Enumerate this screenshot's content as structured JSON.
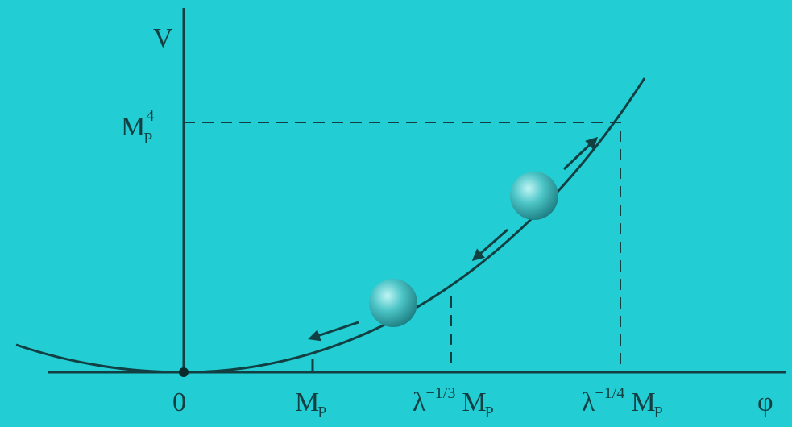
{
  "axes": {
    "y_label": "V",
    "x_label": "φ"
  },
  "y_marks": [
    {
      "base": "M",
      "sub": "P",
      "sup": "4"
    }
  ],
  "x_marks": [
    {
      "text": "0"
    },
    {
      "base": "M",
      "sub": "P"
    },
    {
      "prefix": "λ",
      "sup": "−1/3",
      "base": "M",
      "sub": "P"
    },
    {
      "prefix": "λ",
      "sup": "−1/4",
      "base": "M",
      "sub": "P"
    }
  ]
}
